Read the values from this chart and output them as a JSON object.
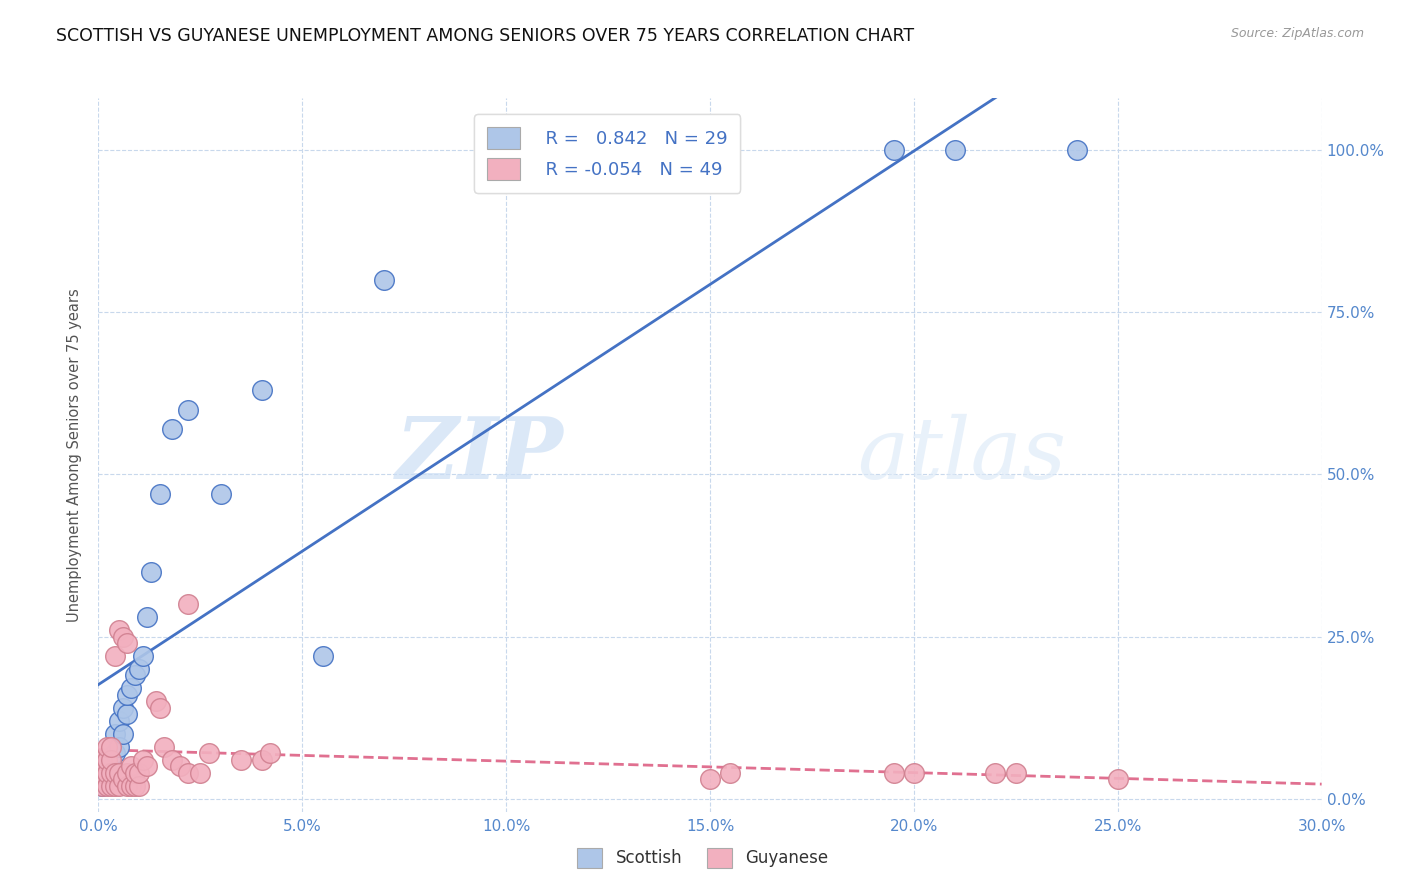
{
  "title": "SCOTTISH VS GUYANESE UNEMPLOYMENT AMONG SENIORS OVER 75 YEARS CORRELATION CHART",
  "source": "Source: ZipAtlas.com",
  "ylabel": "Unemployment Among Seniors over 75 years",
  "xlim": [
    0.0,
    0.3
  ],
  "ylim": [
    -0.02,
    1.08
  ],
  "xtick_labels": [
    "0.0%",
    "",
    "",
    "",
    "",
    "",
    "",
    "",
    "",
    "",
    "5.0%",
    "",
    "",
    "",
    "",
    "",
    "",
    "",
    "",
    "",
    "10.0%",
    "",
    "",
    "",
    "",
    "",
    "",
    "",
    "",
    "",
    "15.0%",
    "",
    "",
    "",
    "",
    "",
    "",
    "",
    "",
    "",
    "20.0%",
    "",
    "",
    "",
    "",
    "",
    "",
    "",
    "",
    "",
    "25.0%",
    "",
    "",
    "",
    "",
    "",
    "",
    "",
    "",
    "",
    "30.0%"
  ],
  "xtick_vals": [
    0.0,
    0.005,
    0.01,
    0.015,
    0.02,
    0.025,
    0.03,
    0.035,
    0.04,
    0.045,
    0.05,
    0.055,
    0.06,
    0.065,
    0.07,
    0.075,
    0.08,
    0.085,
    0.09,
    0.095,
    0.1,
    0.105,
    0.11,
    0.115,
    0.12,
    0.125,
    0.13,
    0.135,
    0.14,
    0.145,
    0.15,
    0.155,
    0.16,
    0.165,
    0.17,
    0.175,
    0.18,
    0.185,
    0.19,
    0.195,
    0.2,
    0.205,
    0.21,
    0.215,
    0.22,
    0.225,
    0.23,
    0.235,
    0.24,
    0.245,
    0.25,
    0.255,
    0.26,
    0.265,
    0.27,
    0.275,
    0.28,
    0.285,
    0.29,
    0.295,
    0.3
  ],
  "major_xtick_vals": [
    0.0,
    0.05,
    0.1,
    0.15,
    0.2,
    0.25,
    0.3
  ],
  "major_xtick_labels": [
    "0.0%",
    "5.0%",
    "10.0%",
    "15.0%",
    "20.0%",
    "25.0%",
    "30.0%"
  ],
  "ytick_vals": [
    0.0,
    0.25,
    0.5,
    0.75,
    1.0
  ],
  "ytick_labels": [
    "0.0%",
    "25.0%",
    "50.0%",
    "75.0%",
    "100.0%"
  ],
  "legend_R_scottish": "0.842",
  "legend_N_scottish": "29",
  "legend_R_guyanese": "-0.054",
  "legend_N_guyanese": "49",
  "scottish_color": "#aec6e8",
  "guyanese_color": "#f2b0bf",
  "trendline_scottish_color": "#4472c4",
  "trendline_guyanese_color": "#e07090",
  "watermark_zip": "ZIP",
  "watermark_atlas": "atlas",
  "scottish_x": [
    0.001,
    0.002,
    0.002,
    0.003,
    0.003,
    0.004,
    0.004,
    0.005,
    0.005,
    0.006,
    0.006,
    0.007,
    0.007,
    0.008,
    0.009,
    0.01,
    0.011,
    0.012,
    0.013,
    0.015,
    0.018,
    0.022,
    0.03,
    0.04,
    0.055,
    0.07,
    0.195,
    0.21,
    0.24
  ],
  "scottish_y": [
    0.02,
    0.03,
    0.05,
    0.04,
    0.06,
    0.07,
    0.1,
    0.08,
    0.12,
    0.1,
    0.14,
    0.13,
    0.16,
    0.17,
    0.19,
    0.2,
    0.22,
    0.28,
    0.35,
    0.47,
    0.57,
    0.6,
    0.47,
    0.63,
    0.22,
    0.8,
    1.0,
    1.0,
    1.0
  ],
  "guyanese_x": [
    0.001,
    0.001,
    0.001,
    0.002,
    0.002,
    0.002,
    0.002,
    0.003,
    0.003,
    0.003,
    0.003,
    0.004,
    0.004,
    0.004,
    0.005,
    0.005,
    0.005,
    0.006,
    0.006,
    0.007,
    0.007,
    0.007,
    0.008,
    0.008,
    0.009,
    0.009,
    0.01,
    0.01,
    0.011,
    0.012,
    0.014,
    0.015,
    0.016,
    0.018,
    0.02,
    0.022,
    0.022,
    0.025,
    0.027,
    0.035,
    0.04,
    0.042,
    0.15,
    0.155,
    0.195,
    0.2,
    0.22,
    0.225,
    0.25
  ],
  "guyanese_y": [
    0.02,
    0.04,
    0.06,
    0.02,
    0.04,
    0.06,
    0.08,
    0.02,
    0.04,
    0.06,
    0.08,
    0.02,
    0.04,
    0.22,
    0.02,
    0.04,
    0.26,
    0.03,
    0.25,
    0.02,
    0.04,
    0.24,
    0.02,
    0.05,
    0.02,
    0.04,
    0.02,
    0.04,
    0.06,
    0.05,
    0.15,
    0.14,
    0.08,
    0.06,
    0.05,
    0.04,
    0.3,
    0.04,
    0.07,
    0.06,
    0.06,
    0.07,
    0.03,
    0.04,
    0.04,
    0.04,
    0.04,
    0.04,
    0.03
  ]
}
